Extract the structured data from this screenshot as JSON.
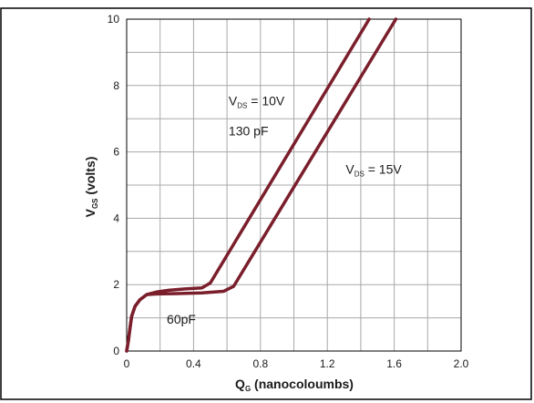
{
  "chart_data": {
    "type": "line",
    "title": "",
    "xlabel": {
      "main": "Q",
      "sub": "G",
      "rest": " (nanocoloumbs)"
    },
    "ylabel": {
      "main": "V",
      "sub": "GS",
      "rest": " (volts)"
    },
    "xlim": [
      0,
      2.0
    ],
    "ylim": [
      0,
      10
    ],
    "x_ticks": [
      "0",
      "0.4",
      "0.8",
      "1.2",
      "1.6",
      "2.0"
    ],
    "y_ticks": [
      "0",
      "2",
      "4",
      "6",
      "8",
      "10"
    ],
    "grid": true,
    "series_color": "#7a1e2b",
    "series": [
      {
        "points": [
          [
            0,
            0
          ],
          [
            0.01,
            0.3
          ],
          [
            0.02,
            0.7
          ],
          [
            0.03,
            1.05
          ],
          [
            0.05,
            1.35
          ],
          [
            0.08,
            1.55
          ],
          [
            0.12,
            1.7
          ],
          [
            0.18,
            1.78
          ],
          [
            0.25,
            1.83
          ],
          [
            0.35,
            1.87
          ],
          [
            0.45,
            1.9
          ],
          [
            0.5,
            2.05
          ],
          [
            1.45,
            10
          ]
        ]
      },
      {
        "points": [
          [
            0,
            0
          ],
          [
            0.01,
            0.3
          ],
          [
            0.02,
            0.7
          ],
          [
            0.03,
            1.05
          ],
          [
            0.05,
            1.35
          ],
          [
            0.08,
            1.55
          ],
          [
            0.12,
            1.7
          ],
          [
            0.18,
            1.72
          ],
          [
            0.3,
            1.73
          ],
          [
            0.45,
            1.75
          ],
          [
            0.58,
            1.8
          ],
          [
            0.64,
            1.95
          ],
          [
            1.61,
            10
          ]
        ]
      }
    ],
    "annotations": [
      {
        "main": "V",
        "sub": "DS",
        "rest": " = 10V",
        "x": 0.61,
        "y": 7.4
      },
      {
        "main": "130 pF",
        "sub": "",
        "rest": "",
        "x": 0.61,
        "y": 6.5
      },
      {
        "main": "V",
        "sub": "DS",
        "rest": " = 15V",
        "x": 1.31,
        "y": 5.35
      },
      {
        "main": "60pF",
        "sub": "",
        "rest": "",
        "x": 0.24,
        "y": 0.82
      }
    ]
  }
}
